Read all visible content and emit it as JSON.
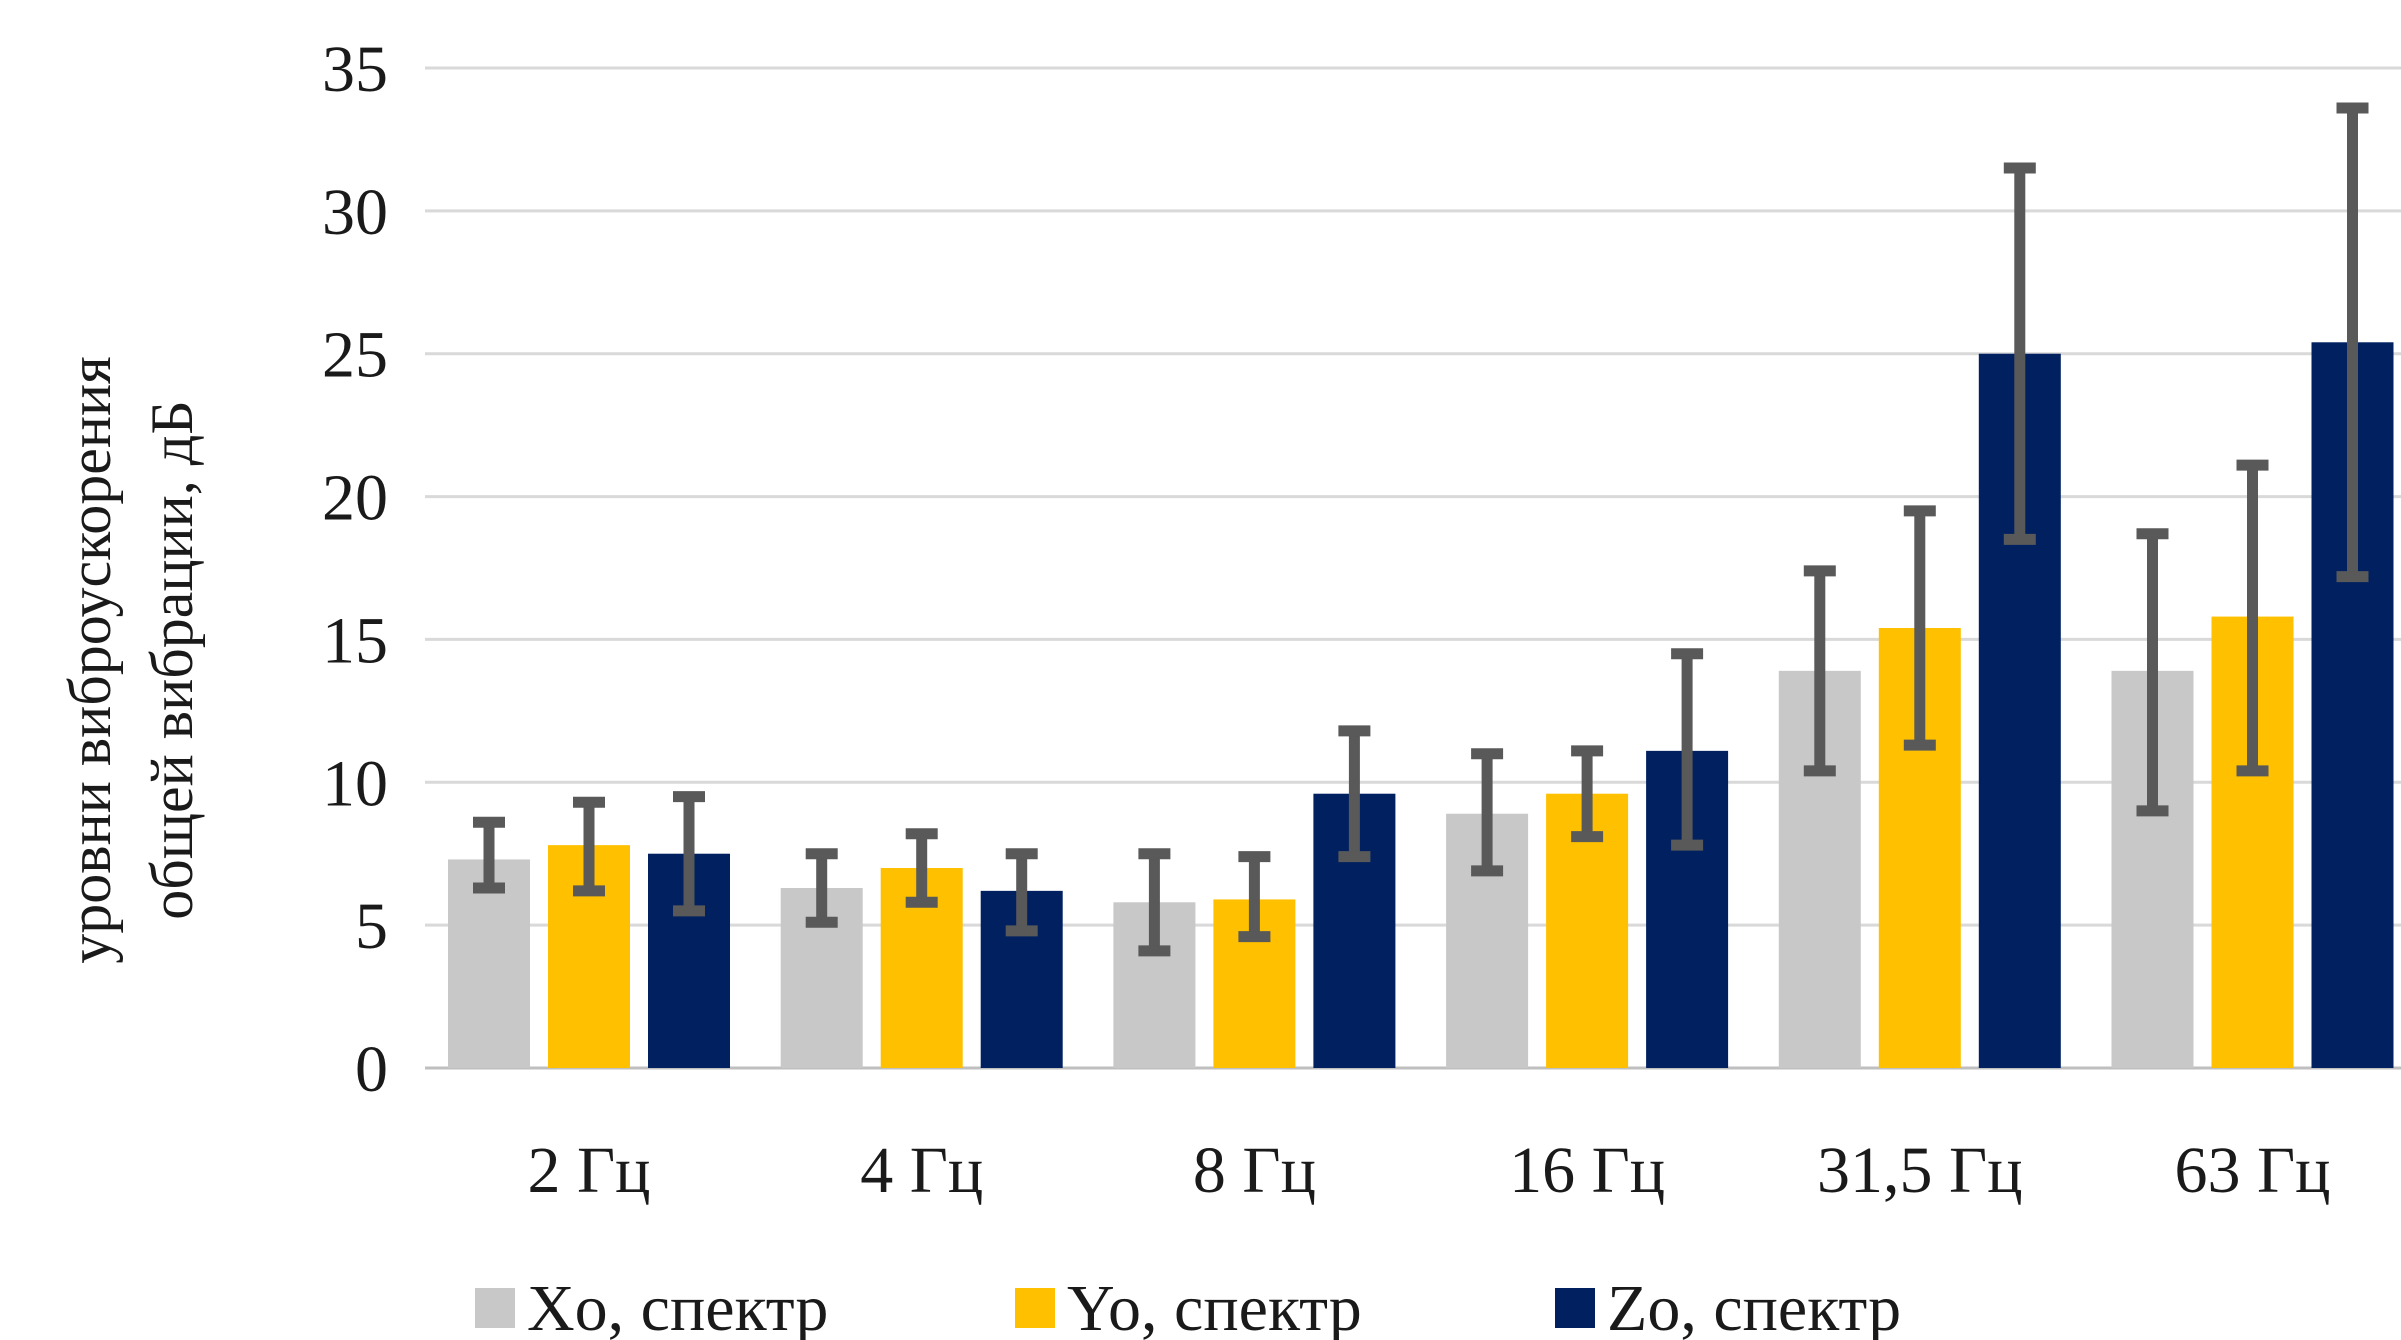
{
  "chart_data": {
    "type": "bar",
    "title": "",
    "xlabel": "",
    "ylabel": [
      "уровни виброускорения",
      "общей вибрации, дБ"
    ],
    "ylim": [
      0,
      35
    ],
    "yticks": [
      "0",
      "5",
      "10",
      "15",
      "20",
      "25",
      "30",
      "35"
    ],
    "grid": true,
    "legend_position": "bottom",
    "categories": [
      "2 Гц",
      "4 Гц",
      "8 Гц",
      "16 Гц",
      "31,5 Гц",
      "63 Гц"
    ],
    "series": [
      {
        "name": "Xo, спектр",
        "color": "#c8c8c8",
        "values": [
          7.3,
          6.3,
          5.8,
          8.9,
          13.9,
          13.9
        ],
        "err_low": [
          6.3,
          5.1,
          4.1,
          6.9,
          10.4,
          9.0
        ],
        "err_high": [
          8.6,
          7.5,
          7.5,
          11.0,
          17.4,
          18.7
        ]
      },
      {
        "name": "Yo, спектр",
        "color": "#ffc000",
        "values": [
          7.8,
          7.0,
          5.9,
          9.6,
          15.4,
          15.8
        ],
        "err_low": [
          6.2,
          5.8,
          4.6,
          8.1,
          11.3,
          10.4
        ],
        "err_high": [
          9.3,
          8.2,
          7.4,
          11.1,
          19.5,
          21.1
        ]
      },
      {
        "name": "Zo, спектр",
        "color": "#002060",
        "values": [
          7.5,
          6.2,
          9.6,
          11.1,
          25.0,
          25.4
        ],
        "err_low": [
          5.5,
          4.8,
          7.4,
          7.8,
          18.5,
          17.2
        ],
        "err_high": [
          9.5,
          7.5,
          11.8,
          14.5,
          31.5,
          33.6
        ]
      }
    ],
    "error_bar_color": "#595959"
  }
}
